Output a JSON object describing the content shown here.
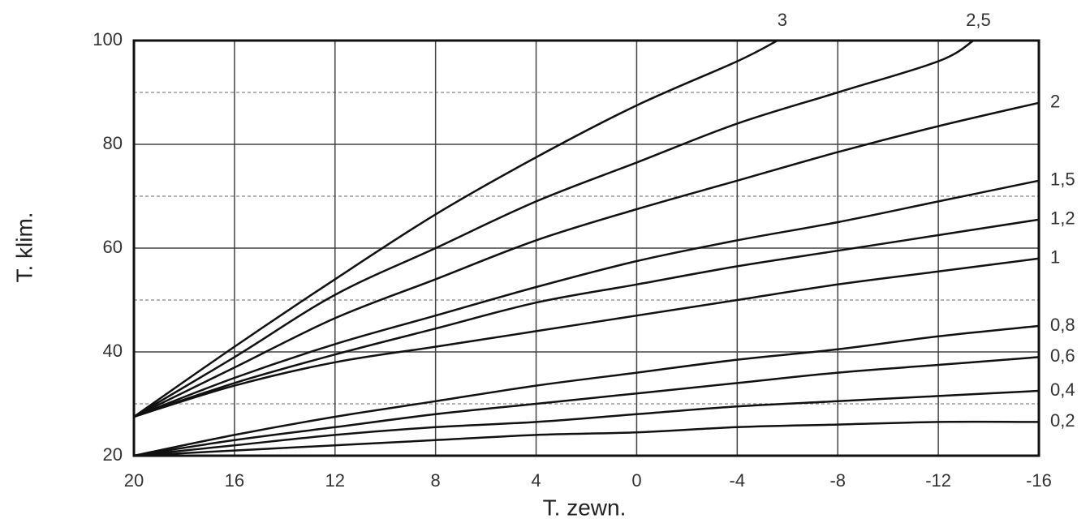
{
  "chart_data": {
    "type": "line",
    "x_title": "T. zewn.",
    "y_title": "T. klim.",
    "xlim": [
      20,
      -16
    ],
    "ylim": [
      20,
      100
    ],
    "xticks": [
      20,
      16,
      12,
      8,
      4,
      0,
      -4,
      -8,
      -12,
      -16
    ],
    "yticks": [
      20,
      40,
      60,
      80,
      100
    ],
    "minor_grid_y": [
      30,
      50,
      70,
      90
    ],
    "grid": true,
    "series": [
      {
        "name": "3",
        "color": "#111111",
        "x": [
          20,
          16,
          12,
          8,
          4,
          0,
          -4,
          -5.6
        ],
        "values": [
          27.5,
          41,
          54,
          66.5,
          77.5,
          87.5,
          96,
          100
        ]
      },
      {
        "name": "2,5",
        "color": "#111111",
        "x": [
          20,
          16,
          12,
          8,
          4,
          0,
          -4,
          -8,
          -12,
          -13.4
        ],
        "values": [
          27.5,
          39,
          51,
          60,
          69,
          76.5,
          84,
          90,
          96,
          100
        ]
      },
      {
        "name": "2",
        "color": "#111111",
        "x": [
          20,
          16,
          12,
          8,
          4,
          0,
          -4,
          -8,
          -12,
          -16
        ],
        "values": [
          27.5,
          37,
          46.5,
          54,
          61.5,
          67.5,
          73,
          78.5,
          83.5,
          88
        ]
      },
      {
        "name": "1,5",
        "color": "#111111",
        "x": [
          20,
          16,
          12,
          8,
          4,
          0,
          -4,
          -8,
          -12,
          -16
        ],
        "values": [
          27.5,
          35,
          41.5,
          47,
          52.5,
          57.5,
          61.5,
          65,
          69,
          73
        ]
      },
      {
        "name": "1,2",
        "color": "#111111",
        "x": [
          20,
          16,
          12,
          8,
          4,
          0,
          -4,
          -8,
          -12,
          -16
        ],
        "values": [
          27.5,
          34,
          39.5,
          44.5,
          49.5,
          53,
          56.5,
          59.5,
          62.5,
          65.5
        ]
      },
      {
        "name": "1",
        "color": "#111111",
        "x": [
          20,
          16,
          12,
          8,
          4,
          0,
          -4,
          -8,
          -12,
          -16
        ],
        "values": [
          27.5,
          33.5,
          38,
          41,
          44,
          47,
          50,
          53,
          55.5,
          58
        ]
      },
      {
        "name": "0,8",
        "color": "#111111",
        "x": [
          20,
          16,
          12,
          8,
          4,
          0,
          -4,
          -8,
          -12,
          -16
        ],
        "values": [
          20,
          24,
          27.5,
          30.5,
          33.5,
          36,
          38.5,
          40.5,
          43,
          45
        ]
      },
      {
        "name": "0,6",
        "color": "#111111",
        "x": [
          20,
          16,
          12,
          8,
          4,
          0,
          -4,
          -8,
          -12,
          -16
        ],
        "values": [
          20,
          23,
          25.5,
          28,
          30,
          32,
          34,
          36,
          37.5,
          39
        ]
      },
      {
        "name": "0,4",
        "color": "#111111",
        "x": [
          20,
          16,
          12,
          8,
          4,
          0,
          -4,
          -8,
          -12,
          -16
        ],
        "values": [
          20,
          22,
          24,
          25.5,
          26.5,
          28,
          29.5,
          30.5,
          31.5,
          32.5
        ]
      },
      {
        "name": "0,2",
        "color": "#111111",
        "x": [
          20,
          16,
          12,
          8,
          4,
          0,
          -4,
          -8,
          -12,
          -16
        ],
        "values": [
          20,
          21,
          22,
          23,
          24,
          24.5,
          25.5,
          26,
          26.5,
          26.5
        ]
      }
    ]
  }
}
